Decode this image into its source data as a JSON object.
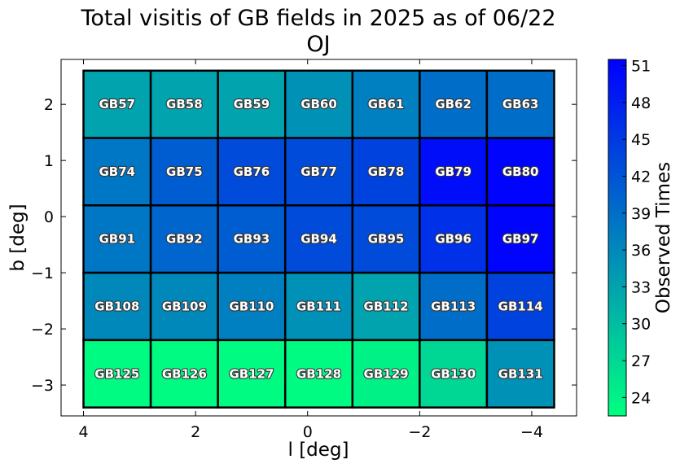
{
  "chart_data": {
    "type": "heatmap",
    "title": "Total visitis of GB fields in 2025 as of 06/22",
    "subtitle": "OJ",
    "xlabel": "l [deg]",
    "ylabel": "b [deg]",
    "xlim": [
      4.4,
      -4.8
    ],
    "ylim": [
      -3.55,
      2.8
    ],
    "x_ticks": [
      4,
      2,
      0,
      -2,
      -4
    ],
    "x_tick_labels": [
      "4",
      "2",
      "0",
      "−2",
      "−4"
    ],
    "y_ticks": [
      2,
      1,
      0,
      -1,
      -2,
      -3
    ],
    "y_tick_labels": [
      "2",
      "1",
      "0",
      "−1",
      "−2",
      "−3"
    ],
    "cell_x_edges": [
      4.0,
      2.8,
      1.6,
      0.4,
      -0.8,
      -2.0,
      -3.2,
      -4.4
    ],
    "cell_y_edges": [
      2.6,
      1.4,
      0.2,
      -1.0,
      -2.2,
      -3.4
    ],
    "colorbar": {
      "label": "Observed Times",
      "range": [
        22.5,
        51.5
      ],
      "ticks": [
        24,
        27,
        30,
        33,
        36,
        39,
        42,
        45,
        48,
        51
      ],
      "colormap": [
        "#00ff80",
        "#0000ff"
      ]
    },
    "rows": [
      {
        "fields": [
          "GB57",
          "GB58",
          "GB59",
          "GB60",
          "GB61",
          "GB62",
          "GB63"
        ],
        "values": [
          33,
          33,
          33,
          35,
          37,
          39,
          39
        ]
      },
      {
        "fields": [
          "GB74",
          "GB75",
          "GB76",
          "GB77",
          "GB78",
          "GB79",
          "GB80"
        ],
        "values": [
          38,
          41,
          43,
          43,
          44,
          50,
          51
        ]
      },
      {
        "fields": [
          "GB91",
          "GB92",
          "GB93",
          "GB94",
          "GB95",
          "GB96",
          "GB97"
        ],
        "values": [
          38,
          40,
          41,
          43,
          43,
          46,
          51
        ]
      },
      {
        "fields": [
          "GB108",
          "GB109",
          "GB110",
          "GB111",
          "GB112",
          "GB113",
          "GB114"
        ],
        "values": [
          36,
          36,
          37,
          35,
          33,
          39,
          44
        ]
      },
      {
        "fields": [
          "GB125",
          "GB126",
          "GB127",
          "GB128",
          "GB129",
          "GB130",
          "GB131"
        ],
        "values": [
          23,
          23,
          23,
          23,
          24,
          27,
          35
        ]
      }
    ]
  }
}
